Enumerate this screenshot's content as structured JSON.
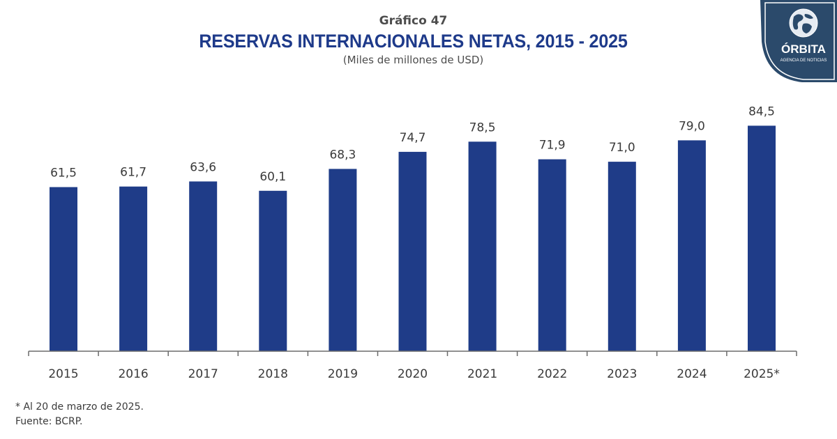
{
  "header": {
    "kicker": "Gráfico 47",
    "title": "RESERVAS INTERNACIONALES NETAS, 2015 - 2025",
    "subtitle": "(Miles de millones de USD)"
  },
  "notes": {
    "footnote": "* Al 20 de marzo de 2025.",
    "source": "Fuente: BCRP."
  },
  "logo": {
    "name": "ÓRBITA",
    "tagline": "AGENCIA DE NOTICIAS",
    "icon": "globe-icon",
    "bg_color": "#2b4a6b"
  },
  "colors": {
    "bar": "#1f3c88",
    "title": "#1e3a8a",
    "axis": "#6b6b6b",
    "text": "#3a3a3a"
  },
  "chart_data": {
    "type": "bar",
    "title": "RESERVAS INTERNACIONALES NETAS, 2015 - 2025",
    "subtitle": "(Miles de millones de USD)",
    "xlabel": "",
    "ylabel": "",
    "categories": [
      "2015",
      "2016",
      "2017",
      "2018",
      "2019",
      "2020",
      "2021",
      "2022",
      "2023",
      "2024",
      "2025*"
    ],
    "values": [
      61.5,
      61.7,
      63.6,
      60.1,
      68.3,
      74.7,
      78.5,
      71.9,
      71.0,
      79.0,
      84.5
    ],
    "value_labels": [
      "61,5",
      "61,7",
      "63,6",
      "60,1",
      "68,3",
      "74,7",
      "78,5",
      "71,9",
      "71,0",
      "79,0",
      "84,5"
    ],
    "ylim": [
      0,
      90
    ],
    "grid": false,
    "legend": "none",
    "y_axis_visible": false
  }
}
